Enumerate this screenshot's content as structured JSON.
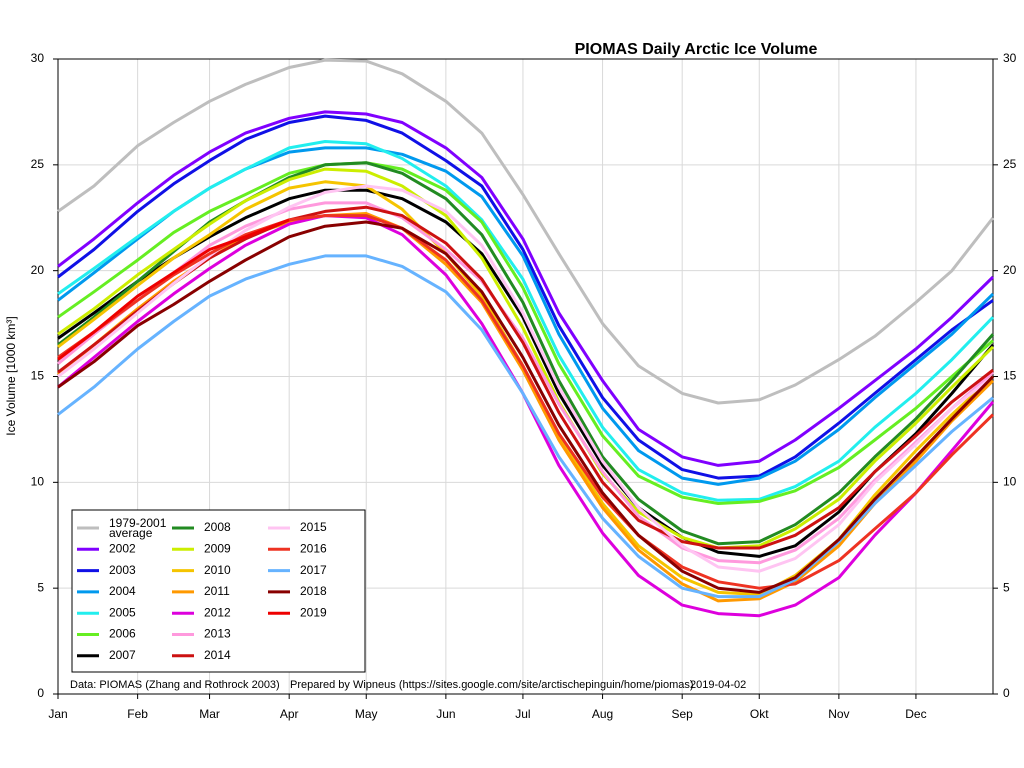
{
  "chart_data": {
    "type": "line",
    "title": "PIOMAS Daily Arctic Ice Volume",
    "y_label": "Ice Volume [1000 km³]",
    "footnotes": [
      "Data: PIOMAS (Zhang and Rothrock 2003)",
      "Prepared by Wipneus (https://sites.google.com/site/arctischepinguin/home/piomas)",
      "2019-04-02"
    ],
    "xlim": [
      1,
      365
    ],
    "xticks": [
      {
        "value": 1,
        "label": "Jan"
      },
      {
        "value": 32,
        "label": "Feb"
      },
      {
        "value": 60,
        "label": "Mar"
      },
      {
        "value": 91,
        "label": "Apr"
      },
      {
        "value": 121,
        "label": "May"
      },
      {
        "value": 152,
        "label": "Jun"
      },
      {
        "value": 182,
        "label": "Jul"
      },
      {
        "value": 213,
        "label": "Aug"
      },
      {
        "value": 244,
        "label": "Sep"
      },
      {
        "value": 274,
        "label": "Okt"
      },
      {
        "value": 305,
        "label": "Nov"
      },
      {
        "value": 335,
        "label": "Dec"
      }
    ],
    "ylim": [
      0,
      30
    ],
    "yticks": [
      0,
      5,
      10,
      15,
      20,
      25,
      30
    ],
    "grid": true,
    "legend": "bottom-left",
    "x": [
      1,
      15,
      32,
      46,
      60,
      74,
      91,
      105,
      121,
      135,
      152,
      166,
      182,
      196,
      213,
      227,
      244,
      258,
      274,
      288,
      305,
      319,
      335,
      349,
      365
    ],
    "series": [
      {
        "name": "1979-2001 average",
        "color": "#bebebe",
        "values": [
          22.8,
          24.0,
          25.9,
          27.0,
          28.0,
          28.8,
          29.6,
          29.95,
          29.9,
          29.3,
          28.0,
          26.5,
          23.6,
          20.8,
          17.5,
          15.5,
          14.2,
          13.75,
          13.9,
          14.6,
          15.8,
          16.9,
          18.5,
          20.0,
          22.5
        ]
      },
      {
        "name": "2002",
        "color": "#8000ff",
        "values": [
          20.2,
          21.5,
          23.2,
          24.5,
          25.6,
          26.5,
          27.2,
          27.5,
          27.4,
          27.0,
          25.8,
          24.4,
          21.5,
          18.0,
          14.8,
          12.5,
          11.2,
          10.8,
          11.0,
          12.0,
          13.5,
          14.8,
          16.3,
          17.8,
          19.7
        ]
      },
      {
        "name": "2003",
        "color": "#1010e6",
        "values": [
          19.7,
          21.0,
          22.8,
          24.1,
          25.2,
          26.2,
          27.0,
          27.3,
          27.1,
          26.5,
          25.2,
          24.0,
          21.0,
          17.4,
          14.0,
          12.0,
          10.6,
          10.2,
          10.3,
          11.2,
          12.8,
          14.2,
          15.8,
          17.2,
          18.6
        ]
      },
      {
        "name": "2004",
        "color": "#0099ee",
        "values": [
          18.6,
          19.9,
          21.5,
          22.8,
          23.9,
          24.8,
          25.6,
          25.8,
          25.8,
          25.5,
          24.7,
          23.5,
          20.7,
          17.0,
          13.5,
          11.5,
          10.2,
          9.9,
          10.2,
          11.0,
          12.5,
          14.0,
          15.6,
          17.0,
          18.9
        ]
      },
      {
        "name": "2005",
        "color": "#22eeee",
        "values": [
          18.9,
          20.1,
          21.6,
          22.8,
          23.9,
          24.8,
          25.8,
          26.1,
          26.0,
          25.3,
          24.0,
          22.4,
          19.6,
          16.0,
          12.6,
          10.6,
          9.5,
          9.15,
          9.2,
          9.8,
          11.0,
          12.6,
          14.2,
          15.8,
          17.8
        ]
      },
      {
        "name": "2006",
        "color": "#66ee22",
        "values": [
          17.8,
          19.0,
          20.5,
          21.8,
          22.8,
          23.6,
          24.6,
          25.0,
          25.1,
          24.8,
          23.8,
          22.3,
          19.2,
          15.6,
          12.2,
          10.3,
          9.3,
          9.0,
          9.1,
          9.6,
          10.7,
          12.0,
          13.5,
          15.0,
          16.7
        ]
      },
      {
        "name": "2007",
        "color": "#000000",
        "values": [
          16.8,
          18.0,
          19.5,
          20.6,
          21.6,
          22.5,
          23.4,
          23.8,
          23.8,
          23.4,
          22.3,
          20.8,
          17.8,
          14.2,
          10.8,
          8.8,
          7.4,
          6.7,
          6.5,
          7.0,
          8.6,
          10.5,
          12.3,
          14.2,
          16.5
        ]
      },
      {
        "name": "2008",
        "color": "#228b22",
        "values": [
          16.5,
          17.8,
          19.5,
          20.9,
          22.3,
          23.3,
          24.4,
          25.0,
          25.1,
          24.6,
          23.4,
          21.7,
          18.5,
          14.8,
          11.2,
          9.2,
          7.7,
          7.1,
          7.2,
          8.0,
          9.5,
          11.2,
          13.0,
          14.8,
          17.0
        ]
      },
      {
        "name": "2009",
        "color": "#ccee00",
        "values": [
          17.0,
          18.2,
          19.8,
          21.0,
          22.2,
          23.3,
          24.3,
          24.8,
          24.7,
          24.0,
          22.6,
          20.6,
          17.3,
          13.8,
          10.4,
          8.6,
          7.4,
          6.9,
          7.0,
          7.8,
          9.2,
          11.0,
          12.8,
          14.5,
          16.4
        ]
      },
      {
        "name": "2010",
        "color": "#f5c400",
        "values": [
          16.4,
          17.7,
          19.3,
          20.6,
          21.7,
          22.9,
          23.9,
          24.2,
          24.0,
          22.9,
          20.8,
          18.8,
          15.5,
          12.2,
          9.0,
          7.0,
          5.5,
          4.8,
          4.7,
          5.6,
          7.3,
          9.4,
          11.5,
          13.2,
          15.0
        ]
      },
      {
        "name": "2011",
        "color": "#ff9900",
        "values": [
          15.1,
          16.5,
          18.2,
          19.5,
          20.6,
          21.6,
          22.3,
          22.6,
          22.7,
          22.0,
          20.3,
          18.5,
          15.3,
          12.0,
          8.8,
          6.8,
          5.2,
          4.4,
          4.5,
          5.3,
          7.0,
          9.0,
          11.0,
          12.9,
          14.8
        ]
      },
      {
        "name": "2012",
        "color": "#dd00dd",
        "values": [
          14.5,
          15.9,
          17.6,
          18.9,
          20.1,
          21.2,
          22.2,
          22.6,
          22.5,
          21.7,
          19.8,
          17.5,
          14.2,
          10.8,
          7.6,
          5.6,
          4.2,
          3.8,
          3.7,
          4.2,
          5.5,
          7.5,
          9.5,
          11.5,
          13.8
        ]
      },
      {
        "name": "2013",
        "color": "#ff99dd",
        "values": [
          15.6,
          17.0,
          18.6,
          19.9,
          21.2,
          22.1,
          22.9,
          23.2,
          23.2,
          22.5,
          21.0,
          19.5,
          16.8,
          13.7,
          10.5,
          8.4,
          6.9,
          6.3,
          6.2,
          6.8,
          8.3,
          10.1,
          11.9,
          13.5,
          15.2
        ]
      },
      {
        "name": "2014",
        "color": "#cc1111",
        "values": [
          15.2,
          16.5,
          18.1,
          19.4,
          20.6,
          21.5,
          22.4,
          22.8,
          23.0,
          22.6,
          21.3,
          19.6,
          16.6,
          13.3,
          10.0,
          8.2,
          7.2,
          6.9,
          6.9,
          7.5,
          8.8,
          10.5,
          12.2,
          13.8,
          15.3
        ]
      },
      {
        "name": "2015",
        "color": "#ffc4f2",
        "values": [
          15.0,
          16.3,
          18.0,
          19.4,
          20.7,
          21.9,
          23.0,
          23.7,
          24.0,
          23.8,
          22.8,
          21.2,
          18.0,
          14.5,
          11.0,
          8.8,
          7.0,
          6.0,
          5.8,
          6.4,
          8.0,
          10.0,
          11.8,
          13.5,
          15.0
        ]
      },
      {
        "name": "2016",
        "color": "#ee3322",
        "values": [
          15.9,
          17.1,
          18.6,
          19.8,
          20.8,
          21.7,
          22.4,
          22.6,
          22.6,
          22.0,
          20.5,
          18.6,
          15.5,
          12.3,
          9.3,
          7.5,
          6.0,
          5.3,
          5.0,
          5.2,
          6.3,
          7.8,
          9.5,
          11.3,
          13.2
        ]
      },
      {
        "name": "2017",
        "color": "#66b3ff",
        "values": [
          13.2,
          14.5,
          16.3,
          17.6,
          18.8,
          19.6,
          20.3,
          20.7,
          20.7,
          20.2,
          19.0,
          17.2,
          14.2,
          11.2,
          8.3,
          6.5,
          5.0,
          4.6,
          4.6,
          5.4,
          7.2,
          9.0,
          10.8,
          12.4,
          14.0
        ]
      },
      {
        "name": "2018",
        "color": "#880000",
        "values": [
          14.5,
          15.7,
          17.4,
          18.4,
          19.5,
          20.5,
          21.6,
          22.1,
          22.3,
          22.0,
          20.8,
          19.0,
          15.9,
          12.7,
          9.5,
          7.5,
          5.8,
          5.0,
          4.8,
          5.5,
          7.3,
          9.2,
          11.2,
          13.0,
          15.0
        ]
      },
      {
        "name": "2019",
        "color": "#ee0000",
        "values": [
          15.8,
          17.1,
          18.8,
          19.9,
          21.0,
          21.6,
          22.4,
          null,
          null,
          null,
          null,
          null,
          null,
          null,
          null,
          null,
          null,
          null,
          null,
          null,
          null,
          null,
          null,
          null,
          null
        ]
      }
    ]
  }
}
